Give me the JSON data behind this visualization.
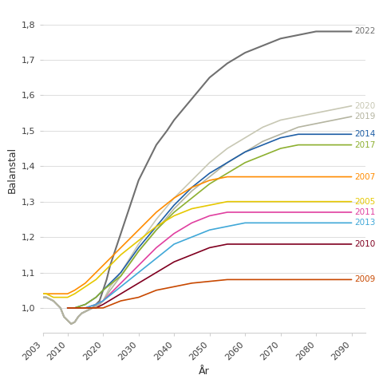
{
  "xlabel": "År",
  "ylabel": "Balanstal",
  "ylim": [
    0.93,
    1.85
  ],
  "xlim": [
    2003,
    2094
  ],
  "xticks": [
    2003,
    2010,
    2020,
    2030,
    2040,
    2050,
    2060,
    2070,
    2080,
    2090
  ],
  "yticks": [
    1.0,
    1.1,
    1.2,
    1.3,
    1.4,
    1.5,
    1.6,
    1.7,
    1.8
  ],
  "series": [
    {
      "label": "2022",
      "color": "#707070",
      "points": [
        [
          2003,
          1.03
        ],
        [
          2004,
          1.03
        ],
        [
          2005,
          1.025
        ],
        [
          2006,
          1.02
        ],
        [
          2007,
          1.01
        ],
        [
          2008,
          1.0
        ],
        [
          2009,
          0.975
        ],
        [
          2010,
          0.965
        ],
        [
          2011,
          0.955
        ],
        [
          2012,
          0.96
        ],
        [
          2013,
          0.975
        ],
        [
          2014,
          0.985
        ],
        [
          2015,
          0.99
        ],
        [
          2016,
          0.995
        ],
        [
          2017,
          1.0
        ],
        [
          2018,
          1.01
        ],
        [
          2019,
          1.02
        ],
        [
          2020,
          1.05
        ],
        [
          2021,
          1.08
        ],
        [
          2022,
          1.12
        ],
        [
          2023,
          1.15
        ],
        [
          2024,
          1.18
        ],
        [
          2025,
          1.21
        ],
        [
          2026,
          1.24
        ],
        [
          2027,
          1.27
        ],
        [
          2028,
          1.3
        ],
        [
          2029,
          1.33
        ],
        [
          2030,
          1.36
        ],
        [
          2032,
          1.4
        ],
        [
          2035,
          1.46
        ],
        [
          2038,
          1.5
        ],
        [
          2040,
          1.53
        ],
        [
          2045,
          1.59
        ],
        [
          2050,
          1.65
        ],
        [
          2055,
          1.69
        ],
        [
          2060,
          1.72
        ],
        [
          2065,
          1.74
        ],
        [
          2070,
          1.76
        ],
        [
          2075,
          1.77
        ],
        [
          2080,
          1.78
        ],
        [
          2085,
          1.78
        ],
        [
          2090,
          1.78
        ]
      ]
    },
    {
      "label": "2020",
      "color": "#c8c8b4",
      "points": [
        [
          2003,
          1.03
        ],
        [
          2004,
          1.03
        ],
        [
          2005,
          1.025
        ],
        [
          2006,
          1.02
        ],
        [
          2007,
          1.01
        ],
        [
          2008,
          1.0
        ],
        [
          2009,
          0.975
        ],
        [
          2010,
          0.965
        ],
        [
          2011,
          0.955
        ],
        [
          2012,
          0.96
        ],
        [
          2013,
          0.975
        ],
        [
          2014,
          0.985
        ],
        [
          2015,
          0.99
        ],
        [
          2016,
          0.995
        ],
        [
          2017,
          1.0
        ],
        [
          2018,
          1.005
        ],
        [
          2019,
          1.01
        ],
        [
          2020,
          1.02
        ],
        [
          2021,
          1.04
        ],
        [
          2022,
          1.06
        ],
        [
          2025,
          1.1
        ],
        [
          2030,
          1.18
        ],
        [
          2035,
          1.25
        ],
        [
          2040,
          1.31
        ],
        [
          2045,
          1.36
        ],
        [
          2050,
          1.41
        ],
        [
          2055,
          1.45
        ],
        [
          2060,
          1.48
        ],
        [
          2065,
          1.51
        ],
        [
          2070,
          1.53
        ],
        [
          2075,
          1.54
        ],
        [
          2080,
          1.55
        ],
        [
          2085,
          1.56
        ],
        [
          2090,
          1.57
        ]
      ]
    },
    {
      "label": "2019",
      "color": "#b4b4a0",
      "points": [
        [
          2003,
          1.03
        ],
        [
          2004,
          1.03
        ],
        [
          2005,
          1.025
        ],
        [
          2006,
          1.02
        ],
        [
          2007,
          1.01
        ],
        [
          2008,
          1.0
        ],
        [
          2009,
          0.975
        ],
        [
          2010,
          0.965
        ],
        [
          2011,
          0.955
        ],
        [
          2012,
          0.96
        ],
        [
          2013,
          0.975
        ],
        [
          2014,
          0.985
        ],
        [
          2015,
          0.99
        ],
        [
          2016,
          0.995
        ],
        [
          2017,
          1.0
        ],
        [
          2018,
          1.005
        ],
        [
          2019,
          1.01
        ],
        [
          2020,
          1.02
        ],
        [
          2021,
          1.035
        ],
        [
          2022,
          1.05
        ],
        [
          2025,
          1.09
        ],
        [
          2030,
          1.16
        ],
        [
          2035,
          1.22
        ],
        [
          2040,
          1.28
        ],
        [
          2045,
          1.33
        ],
        [
          2050,
          1.37
        ],
        [
          2055,
          1.41
        ],
        [
          2060,
          1.44
        ],
        [
          2065,
          1.47
        ],
        [
          2070,
          1.49
        ],
        [
          2075,
          1.51
        ],
        [
          2080,
          1.52
        ],
        [
          2085,
          1.53
        ],
        [
          2090,
          1.54
        ]
      ]
    },
    {
      "label": "2014",
      "color": "#1f5fa6",
      "points": [
        [
          2010,
          1.0
        ],
        [
          2012,
          1.0
        ],
        [
          2015,
          1.01
        ],
        [
          2018,
          1.03
        ],
        [
          2020,
          1.05
        ],
        [
          2025,
          1.1
        ],
        [
          2030,
          1.17
        ],
        [
          2035,
          1.23
        ],
        [
          2040,
          1.29
        ],
        [
          2045,
          1.34
        ],
        [
          2050,
          1.38
        ],
        [
          2055,
          1.41
        ],
        [
          2060,
          1.44
        ],
        [
          2065,
          1.46
        ],
        [
          2070,
          1.48
        ],
        [
          2075,
          1.49
        ],
        [
          2080,
          1.49
        ],
        [
          2085,
          1.49
        ],
        [
          2090,
          1.49
        ]
      ]
    },
    {
      "label": "2017",
      "color": "#8db030",
      "points": [
        [
          2010,
          1.0
        ],
        [
          2012,
          1.0
        ],
        [
          2015,
          1.01
        ],
        [
          2018,
          1.03
        ],
        [
          2020,
          1.05
        ],
        [
          2025,
          1.09
        ],
        [
          2030,
          1.16
        ],
        [
          2035,
          1.22
        ],
        [
          2040,
          1.27
        ],
        [
          2045,
          1.31
        ],
        [
          2050,
          1.35
        ],
        [
          2055,
          1.38
        ],
        [
          2060,
          1.41
        ],
        [
          2065,
          1.43
        ],
        [
          2070,
          1.45
        ],
        [
          2075,
          1.46
        ],
        [
          2080,
          1.46
        ],
        [
          2085,
          1.46
        ],
        [
          2090,
          1.46
        ]
      ]
    },
    {
      "label": "2007",
      "color": "#ff8c00",
      "points": [
        [
          2003,
          1.04
        ],
        [
          2004,
          1.04
        ],
        [
          2005,
          1.04
        ],
        [
          2006,
          1.04
        ],
        [
          2007,
          1.04
        ],
        [
          2008,
          1.04
        ],
        [
          2009,
          1.04
        ],
        [
          2010,
          1.04
        ],
        [
          2012,
          1.05
        ],
        [
          2015,
          1.07
        ],
        [
          2018,
          1.1
        ],
        [
          2020,
          1.12
        ],
        [
          2025,
          1.17
        ],
        [
          2030,
          1.22
        ],
        [
          2035,
          1.27
        ],
        [
          2040,
          1.31
        ],
        [
          2045,
          1.34
        ],
        [
          2050,
          1.36
        ],
        [
          2055,
          1.37
        ],
        [
          2060,
          1.37
        ],
        [
          2065,
          1.37
        ],
        [
          2070,
          1.37
        ],
        [
          2075,
          1.37
        ],
        [
          2080,
          1.37
        ],
        [
          2085,
          1.37
        ],
        [
          2090,
          1.37
        ]
      ]
    },
    {
      "label": "2005",
      "color": "#e6c800",
      "points": [
        [
          2003,
          1.04
        ],
        [
          2004,
          1.04
        ],
        [
          2005,
          1.035
        ],
        [
          2006,
          1.03
        ],
        [
          2007,
          1.03
        ],
        [
          2008,
          1.03
        ],
        [
          2009,
          1.03
        ],
        [
          2010,
          1.03
        ],
        [
          2012,
          1.04
        ],
        [
          2015,
          1.06
        ],
        [
          2018,
          1.08
        ],
        [
          2020,
          1.1
        ],
        [
          2025,
          1.15
        ],
        [
          2030,
          1.19
        ],
        [
          2035,
          1.23
        ],
        [
          2040,
          1.26
        ],
        [
          2045,
          1.28
        ],
        [
          2050,
          1.29
        ],
        [
          2055,
          1.3
        ],
        [
          2060,
          1.3
        ],
        [
          2065,
          1.3
        ],
        [
          2070,
          1.3
        ],
        [
          2075,
          1.3
        ],
        [
          2080,
          1.3
        ],
        [
          2085,
          1.3
        ],
        [
          2090,
          1.3
        ]
      ]
    },
    {
      "label": "2011",
      "color": "#e040a0",
      "points": [
        [
          2010,
          1.0
        ],
        [
          2012,
          1.0
        ],
        [
          2015,
          1.0
        ],
        [
          2018,
          1.01
        ],
        [
          2020,
          1.02
        ],
        [
          2025,
          1.07
        ],
        [
          2030,
          1.12
        ],
        [
          2035,
          1.17
        ],
        [
          2040,
          1.21
        ],
        [
          2045,
          1.24
        ],
        [
          2050,
          1.26
        ],
        [
          2055,
          1.27
        ],
        [
          2060,
          1.27
        ],
        [
          2065,
          1.27
        ],
        [
          2070,
          1.27
        ],
        [
          2075,
          1.27
        ],
        [
          2080,
          1.27
        ],
        [
          2085,
          1.27
        ],
        [
          2090,
          1.27
        ]
      ]
    },
    {
      "label": "2013",
      "color": "#40a8d8",
      "points": [
        [
          2010,
          1.0
        ],
        [
          2012,
          1.0
        ],
        [
          2015,
          1.0
        ],
        [
          2018,
          1.01
        ],
        [
          2020,
          1.02
        ],
        [
          2025,
          1.06
        ],
        [
          2030,
          1.1
        ],
        [
          2035,
          1.14
        ],
        [
          2040,
          1.18
        ],
        [
          2045,
          1.2
        ],
        [
          2050,
          1.22
        ],
        [
          2055,
          1.23
        ],
        [
          2060,
          1.24
        ],
        [
          2065,
          1.24
        ],
        [
          2070,
          1.24
        ],
        [
          2075,
          1.24
        ],
        [
          2080,
          1.24
        ],
        [
          2085,
          1.24
        ],
        [
          2090,
          1.24
        ]
      ]
    },
    {
      "label": "2010",
      "color": "#800020",
      "points": [
        [
          2010,
          1.0
        ],
        [
          2012,
          1.0
        ],
        [
          2015,
          1.0
        ],
        [
          2018,
          1.0
        ],
        [
          2020,
          1.01
        ],
        [
          2025,
          1.04
        ],
        [
          2030,
          1.07
        ],
        [
          2035,
          1.1
        ],
        [
          2040,
          1.13
        ],
        [
          2045,
          1.15
        ],
        [
          2050,
          1.17
        ],
        [
          2055,
          1.18
        ],
        [
          2060,
          1.18
        ],
        [
          2065,
          1.18
        ],
        [
          2070,
          1.18
        ],
        [
          2075,
          1.18
        ],
        [
          2080,
          1.18
        ],
        [
          2085,
          1.18
        ],
        [
          2090,
          1.18
        ]
      ]
    },
    {
      "label": "2009",
      "color": "#c84800",
      "points": [
        [
          2010,
          1.0
        ],
        [
          2012,
          1.0
        ],
        [
          2015,
          1.0
        ],
        [
          2018,
          1.0
        ],
        [
          2020,
          1.0
        ],
        [
          2025,
          1.02
        ],
        [
          2030,
          1.03
        ],
        [
          2035,
          1.05
        ],
        [
          2040,
          1.06
        ],
        [
          2045,
          1.07
        ],
        [
          2050,
          1.075
        ],
        [
          2055,
          1.08
        ],
        [
          2060,
          1.08
        ],
        [
          2065,
          1.08
        ],
        [
          2070,
          1.08
        ],
        [
          2075,
          1.08
        ],
        [
          2080,
          1.08
        ],
        [
          2085,
          1.08
        ],
        [
          2090,
          1.08
        ]
      ]
    }
  ]
}
